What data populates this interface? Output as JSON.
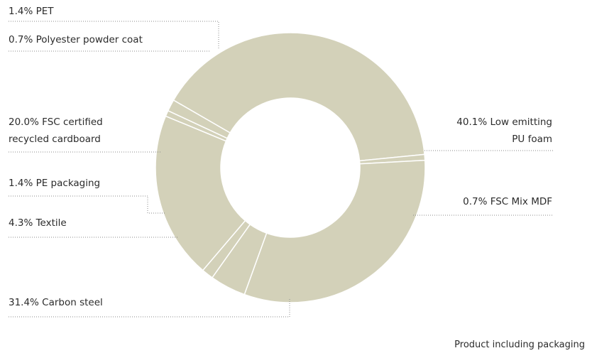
{
  "colors": {
    "slice": "#d3d1b9",
    "slice_border": "#ffffff",
    "leader": "#8a8a8a",
    "text": "#2b2b2b"
  },
  "chart_data": {
    "type": "pie",
    "variant": "donut",
    "slices": [
      {
        "label": "40.1% Low emitting PU foam",
        "label_lines": [
          "40.1% Low emitting",
          "PU foam"
        ],
        "value": 40.1
      },
      {
        "label": "0.7% FSC Mix MDF",
        "label_lines": [
          "0.7% FSC Mix MDF"
        ],
        "value": 0.7
      },
      {
        "label": "31.4% Carbon steel",
        "label_lines": [
          "31.4% Carbon steel"
        ],
        "value": 31.4
      },
      {
        "label": "4.3% Textile",
        "label_lines": [
          "4.3% Textile"
        ],
        "value": 4.3
      },
      {
        "label": "1.4% PE packaging",
        "label_lines": [
          "1.4% PE packaging"
        ],
        "value": 1.4
      },
      {
        "label": "20.0% FSC certified recycled cardboard",
        "label_lines": [
          "20.0% FSC certified",
          "recycled cardboard"
        ],
        "value": 20.0
      },
      {
        "label": "0.7% Polyester powder coat",
        "label_lines": [
          "0.7% Polyester powder coat"
        ],
        "value": 0.7
      },
      {
        "label": "1.4% PET",
        "label_lines": [
          "1.4% PET"
        ],
        "value": 1.4
      }
    ],
    "footer": "Product including packaging"
  }
}
